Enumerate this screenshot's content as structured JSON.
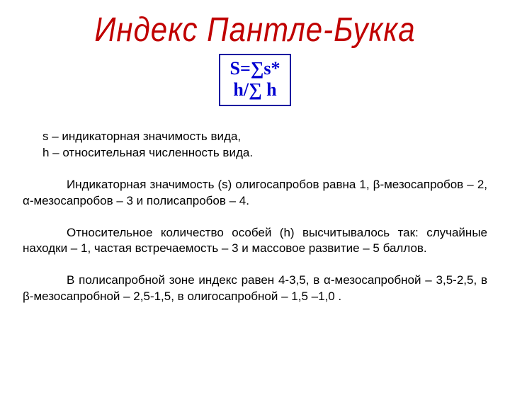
{
  "title": "Индекс Пантле-Букка",
  "formula": {
    "line1": "S=∑s*",
    "line2": "h/∑ h",
    "border_color": "#0000a0",
    "text_color": "#0000d0"
  },
  "definitions": {
    "s_def": "s – индикаторная значимость вида,",
    "h_def": " h – относительная численность вида."
  },
  "paragraph1": "Индикаторная значимость (s) олигосапробов равна 1, β-мезосапробов – 2, α-мезосапробов – 3 и полисапробов – 4.",
  "paragraph2": "Относительное количество особей (h) высчитывалось так: случайные находки – 1, частая встречаемость – 3 и массовое развитие – 5 баллов.",
  "paragraph3": "В полисапробной зоне индекс равен 4-3,5, в α-мезосапробной – 3,5-2,5, в β-мезосапробной – 2,5-1,5, в олигосапробной – 1,5 –1,0 .",
  "colors": {
    "title_color": "#c00000",
    "text_color": "#000000",
    "background": "#ffffff"
  },
  "fonts": {
    "title_size": 42,
    "formula_size": 26,
    "body_size": 17
  }
}
